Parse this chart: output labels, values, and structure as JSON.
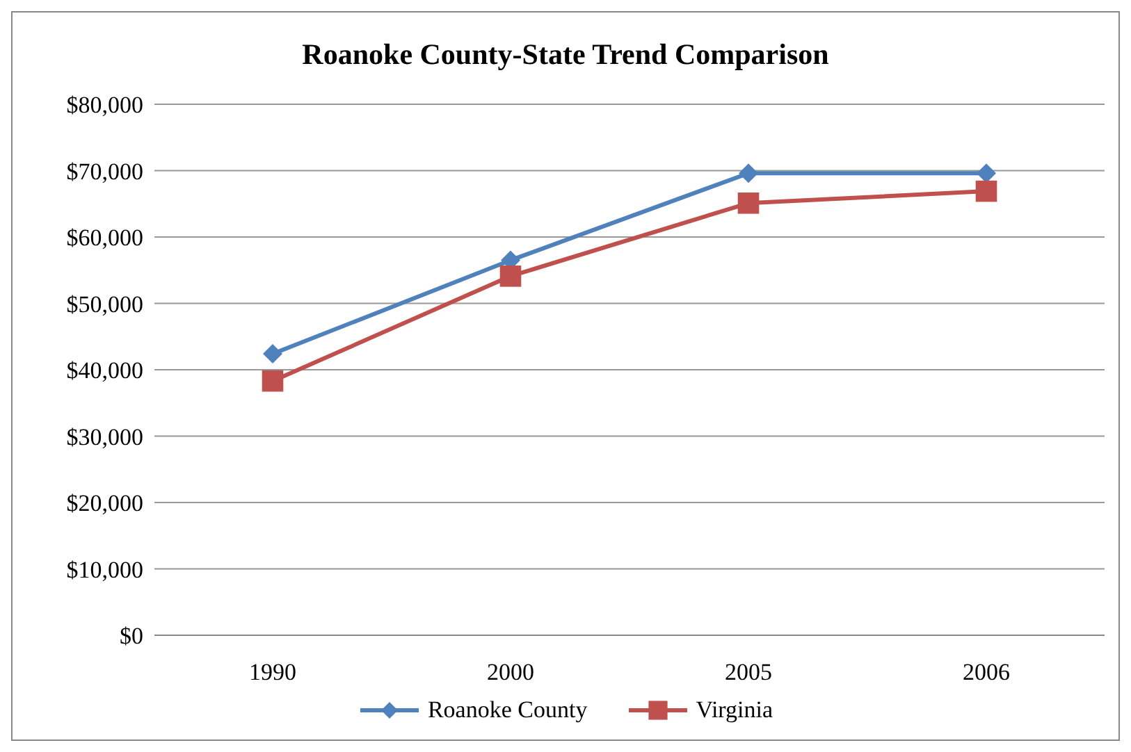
{
  "chart_data": {
    "type": "line",
    "title": "Roanoke County-State Trend Comparison",
    "categories": [
      "1990",
      "2000",
      "2005",
      "2006"
    ],
    "series": [
      {
        "name": "Roanoke County",
        "color": "#4f81bd",
        "marker": "diamond",
        "values": [
          42400,
          56500,
          69600,
          69600
        ]
      },
      {
        "name": "Virginia",
        "color": "#c0504d",
        "marker": "square",
        "values": [
          38300,
          54100,
          65100,
          66900
        ]
      }
    ],
    "ylim": [
      0,
      80000
    ],
    "yticks": [
      {
        "value": 0,
        "label": "$0"
      },
      {
        "value": 10000,
        "label": "$10,000"
      },
      {
        "value": 20000,
        "label": "$20,000"
      },
      {
        "value": 30000,
        "label": "$30,000"
      },
      {
        "value": 40000,
        "label": "$40,000"
      },
      {
        "value": 50000,
        "label": "$50,000"
      },
      {
        "value": 60000,
        "label": "$60,000"
      },
      {
        "value": 70000,
        "label": "$70,000"
      },
      {
        "value": 80000,
        "label": "$80,000"
      }
    ],
    "grid": "y",
    "legend": "bottom",
    "line_style": "solid"
  }
}
